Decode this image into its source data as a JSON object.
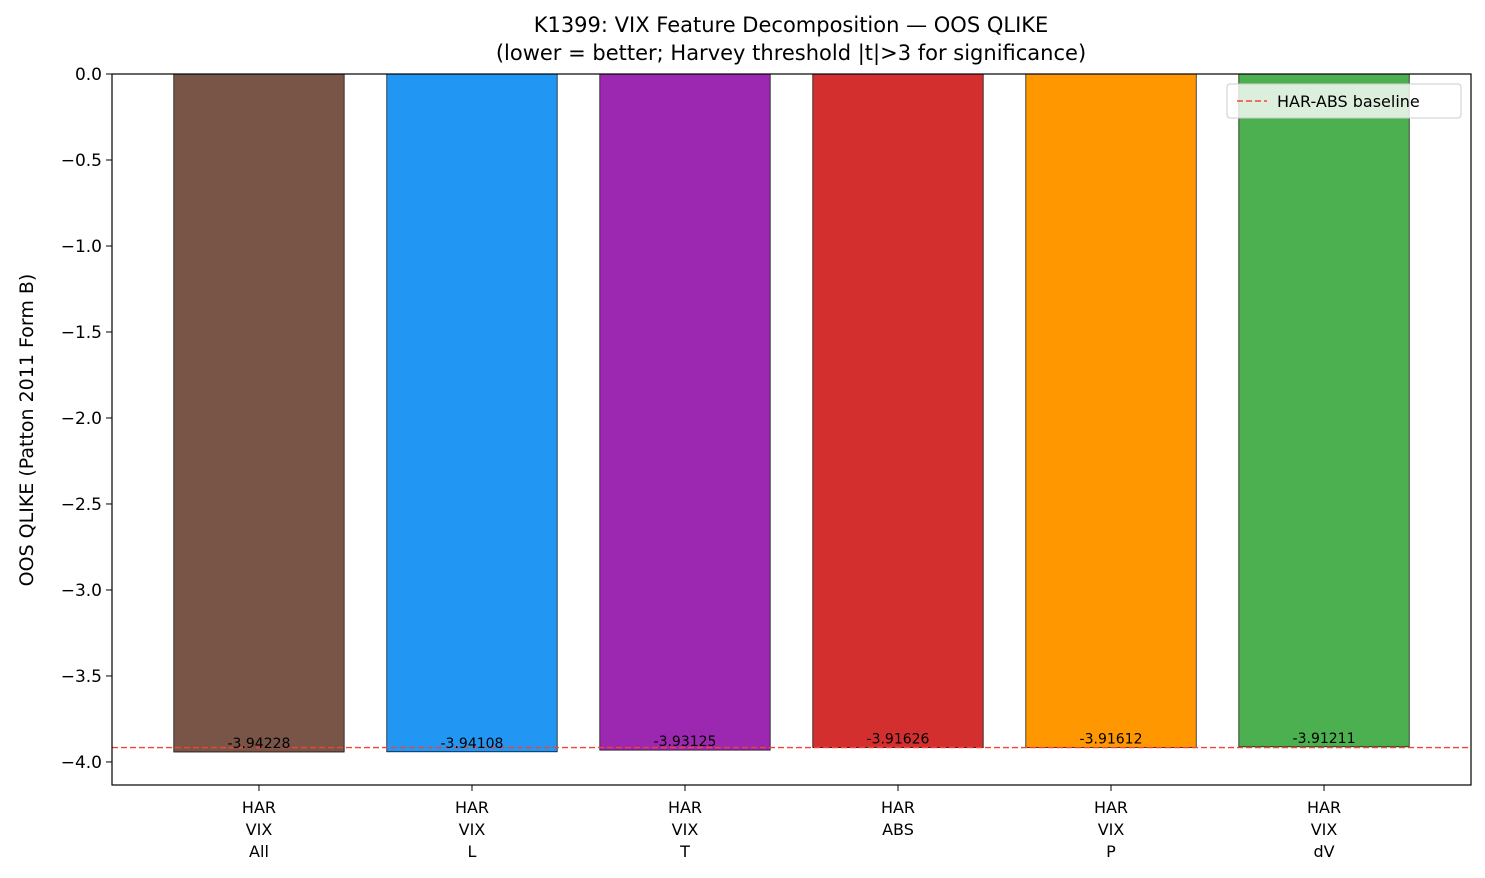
{
  "chart_data": {
    "type": "bar",
    "title": "K1399: VIX Feature Decomposition — OOS QLIKE",
    "subtitle": "(lower = better; Harvey threshold |t|>3 for significance)",
    "y_label": "OOS QLIKE (Patton 2011 Form B)",
    "categories": [
      "HAR\nVIX\nAll",
      "HAR\nVIX\nL",
      "HAR\nVIX\nT",
      "HAR\nABS",
      "HAR\nVIX\nP",
      "HAR\nVIX\ndV"
    ],
    "values": [
      -3.94228,
      -3.94108,
      -3.93125,
      -3.91626,
      -3.91612,
      -3.91211
    ],
    "colors": [
      "#795548",
      "#2196F3",
      "#9C27B0",
      "#D32F2F",
      "#FF9800",
      "#4CAF50"
    ],
    "ylim": [
      -4.134,
      0
    ],
    "yticks": [
      {
        "value": 0,
        "label": "0.0"
      },
      {
        "value": -0.5,
        "label": "−0.5"
      },
      {
        "value": -1,
        "label": "−1.0"
      },
      {
        "value": -1.5,
        "label": "−1.5"
      },
      {
        "value": -2,
        "label": "−2.0"
      },
      {
        "value": -2.5,
        "label": "−2.5"
      },
      {
        "value": -3,
        "label": "−3.0"
      },
      {
        "value": -3.5,
        "label": "−3.5"
      },
      {
        "value": -4,
        "label": "−4.0"
      }
    ],
    "baseline": {
      "name": "HAR-ABS baseline",
      "value": -3.91626,
      "color": "#f44336"
    },
    "legend": "upper right"
  }
}
